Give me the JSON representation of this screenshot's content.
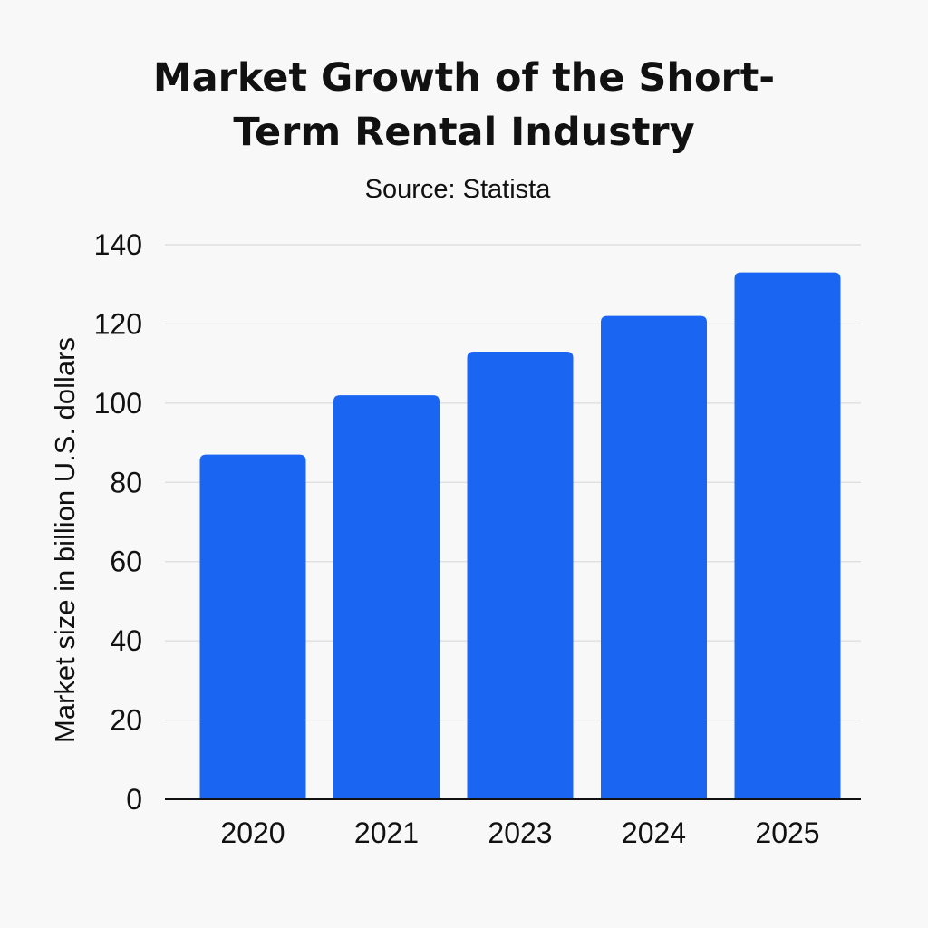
{
  "chart_data": {
    "type": "bar",
    "title_lines": [
      "Market Growth of the Short-",
      "Term Rental Industry"
    ],
    "subtitle": "Source: Statista",
    "xlabel": "",
    "ylabel": "Market size in billion U.S. dollars",
    "categories": [
      "2020",
      "2021",
      "2023",
      "2024",
      "2025"
    ],
    "values": [
      87,
      102,
      113,
      122,
      133
    ],
    "ylim": [
      0,
      140
    ],
    "yticks": [
      0,
      20,
      40,
      60,
      80,
      100,
      120,
      140
    ],
    "grid": true,
    "bar_color": "#1a66f2"
  }
}
